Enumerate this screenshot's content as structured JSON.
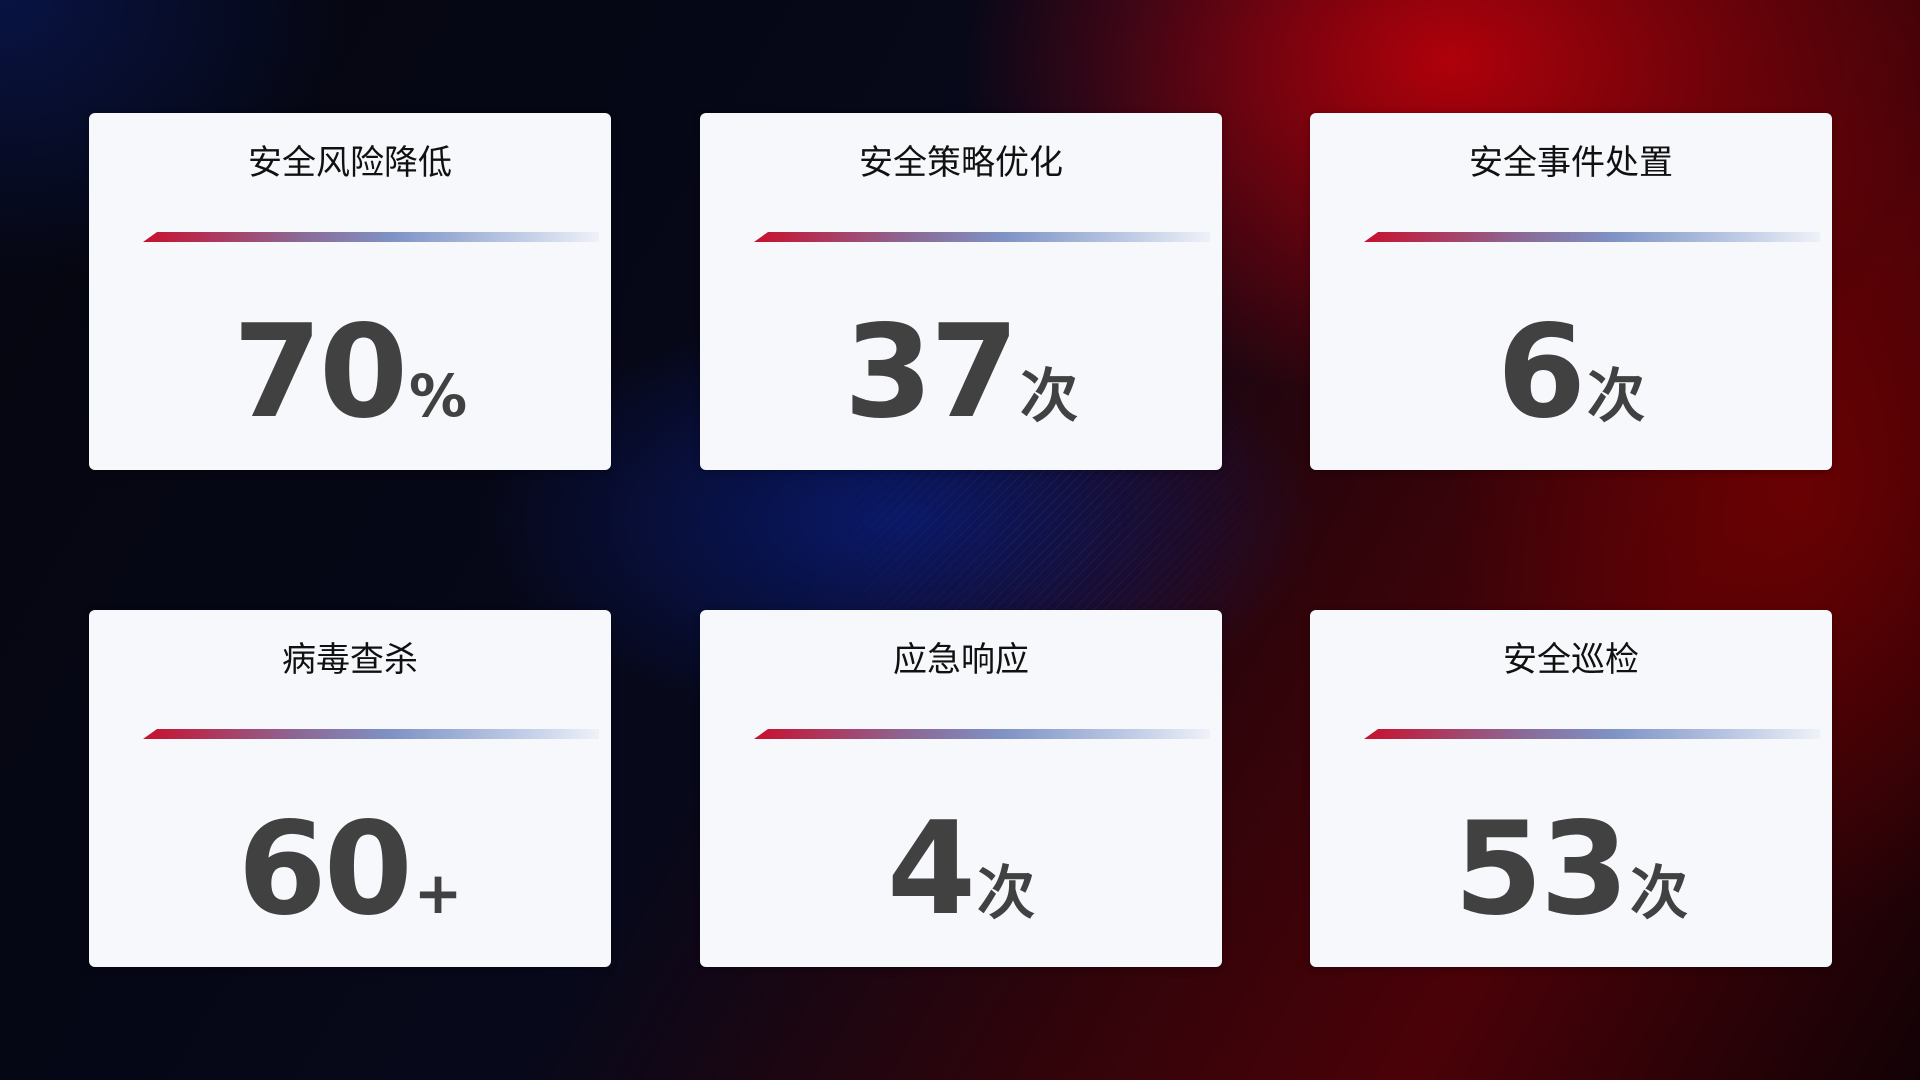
{
  "cards": [
    {
      "title": "安全风险降低",
      "value": "70",
      "unit": "%"
    },
    {
      "title": "安全策略优化",
      "value": "37",
      "unit": "次"
    },
    {
      "title": "安全事件处置",
      "value": "6",
      "unit": "次"
    },
    {
      "title": "病毒查杀",
      "value": "60",
      "unit": "+"
    },
    {
      "title": "应急响应",
      "value": "4",
      "unit": "次"
    },
    {
      "title": "安全巡检",
      "value": "53",
      "unit": "次"
    }
  ],
  "colors": {
    "accent_red": "#c8102e",
    "accent_blue": "#7f93c6",
    "card_bg": "#f6f8fc",
    "value_text": "#414141"
  }
}
